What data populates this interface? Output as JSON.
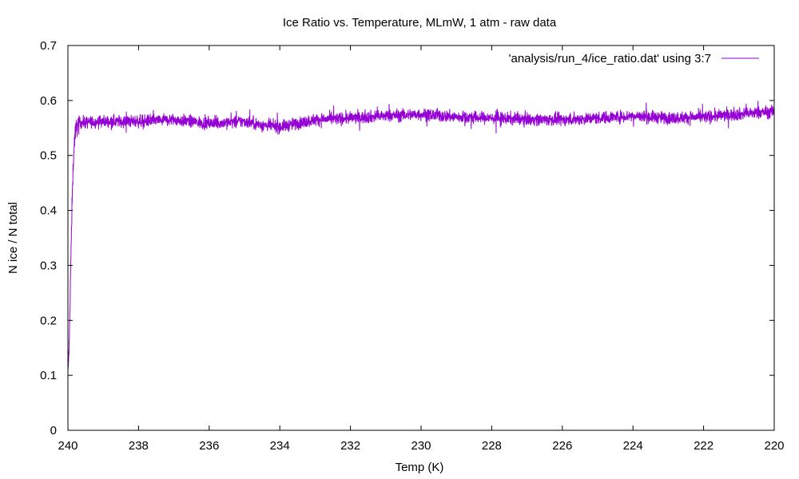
{
  "chart_data": {
    "type": "line",
    "title": "Ice Ratio vs. Temperature, MLmW, 1 atm - raw data",
    "xlabel": "Temp (K)",
    "ylabel": "N ice / N total",
    "xlim": [
      240,
      220
    ],
    "ylim": [
      0,
      0.7
    ],
    "x_reversed": true,
    "grid": false,
    "legend_position": "top-right",
    "x_ticks": [
      "240",
      "238",
      "236",
      "234",
      "232",
      "230",
      "228",
      "226",
      "224",
      "222",
      "220"
    ],
    "y_ticks": [
      "0",
      "0.1",
      "0.2",
      "0.3",
      "0.4",
      "0.5",
      "0.6",
      "0.7"
    ],
    "series": [
      {
        "name": "'analysis/run_4/ice_ratio.dat' using 3:7",
        "color": "#9400d3",
        "noise_amplitude": 0.012,
        "x": [
          240.0,
          239.96,
          239.92,
          239.88,
          239.84,
          239.8,
          239.76,
          239.72,
          239.68,
          239.6,
          239.5,
          239.0,
          238.0,
          237.0,
          236.0,
          235.0,
          234.5,
          234.0,
          233.0,
          232.0,
          231.0,
          230.0,
          229.0,
          228.0,
          227.0,
          226.0,
          225.0,
          224.0,
          223.0,
          222.0,
          221.0,
          220.0
        ],
        "values": [
          0.1,
          0.16,
          0.3,
          0.42,
          0.5,
          0.54,
          0.55,
          0.555,
          0.56,
          0.56,
          0.56,
          0.562,
          0.562,
          0.565,
          0.558,
          0.562,
          0.555,
          0.552,
          0.565,
          0.568,
          0.572,
          0.575,
          0.57,
          0.568,
          0.566,
          0.565,
          0.568,
          0.572,
          0.568,
          0.57,
          0.575,
          0.58
        ]
      }
    ]
  }
}
